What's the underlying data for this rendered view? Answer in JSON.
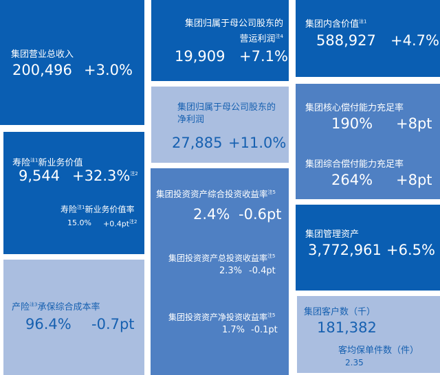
{
  "tiles": {
    "revenue": {
      "label": "集团营业总收入",
      "value": "200,496",
      "change": "+3.0%"
    },
    "nbv": {
      "label": "寿险",
      "note": "注1",
      "label2": "新业务价值",
      "value": "9,544",
      "change": "+32.3%",
      "change_note": "注2",
      "sub_label": "寿险",
      "sub_note": "注1",
      "sub_label2": "新业务价值率",
      "sub_value": "15.0%",
      "sub_change": "+0.4pt",
      "sub_change_note": "注2"
    },
    "ratio": {
      "label": "产险",
      "note": "注3",
      "label2": "承保综合成本率",
      "value": "96.4%",
      "change": "-0.7pt"
    },
    "opprofit": {
      "label1": "集团归属于母公司股东的",
      "label2": "营运利润",
      "note": "注4",
      "value": "19,909",
      "change": "+7.1%"
    },
    "netprofit": {
      "label1": "集团归属于母公司股东的",
      "label2": "净利润",
      "value": "27,885",
      "change": "+11.0%"
    },
    "invest": {
      "label": "集团投资资产综合投资收益率",
      "note": "注5",
      "value": "2.4%",
      "change": "-0.6pt",
      "label_b": "集团投资资产总投资收益率",
      "note_b": "注5",
      "value_b": "2.3%",
      "change_b": "-0.4pt",
      "label_c": "集团投资资产净投资收益率",
      "note_c": "注5",
      "value_c": "1.7%",
      "change_c": "-0.1pt"
    },
    "ev": {
      "label": "集团内含价值",
      "note": "注1",
      "value": "588,927",
      "change": "+4.7%"
    },
    "solvency": {
      "label": "集团核心偿付能力充足率",
      "value": "190%",
      "change": "+8pt",
      "label_b": "集团综合偿付能力充足率",
      "value_b": "264%",
      "change_b": "+8pt"
    },
    "aum": {
      "label": "集团管理资产",
      "value": "3,772,961",
      "change": "+6.5%"
    },
    "customers": {
      "label": "集团客户数（千）",
      "value": "181,382",
      "sub_label": "客均保单件数（件）",
      "sub_value": "2.35"
    }
  }
}
